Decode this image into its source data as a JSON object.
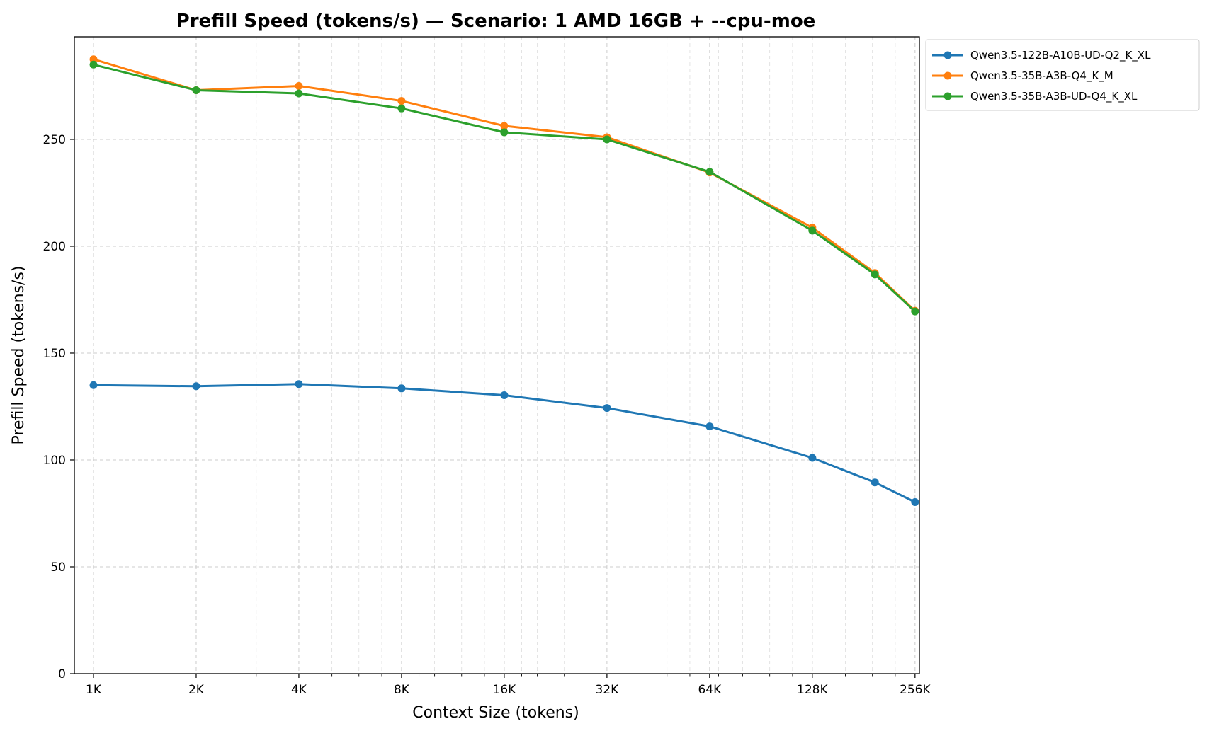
{
  "chart_data": {
    "type": "line",
    "title": "Prefill Speed (tokens/s) — Scenario: 1 AMD 16GB + --cpu-moe",
    "xlabel": "Context Size (tokens)",
    "ylabel": "Prefill Speed (tokens/s)",
    "x_scale": "log2",
    "x_ticks": [
      {
        "value": 1024,
        "label": "1K"
      },
      {
        "value": 2048,
        "label": "2K"
      },
      {
        "value": 4096,
        "label": "4K"
      },
      {
        "value": 8192,
        "label": "8K"
      },
      {
        "value": 16384,
        "label": "16K"
      },
      {
        "value": 32768,
        "label": "32K"
      },
      {
        "value": 65536,
        "label": "64K"
      },
      {
        "value": 131072,
        "label": "128K"
      },
      {
        "value": 262144,
        "label": "256K"
      }
    ],
    "x_minor_ticks": [
      3072,
      5120,
      6144,
      7168,
      9216,
      10240,
      12288,
      14336,
      18432,
      20480,
      24576,
      40960,
      49152,
      57344,
      69632,
      81920,
      98304,
      114688,
      163840,
      196608,
      229376
    ],
    "y_ticks": [
      0,
      50,
      100,
      150,
      200,
      250
    ],
    "xlim": [
      900,
      270000
    ],
    "ylim": [
      0,
      298
    ],
    "grid": true,
    "legend_position": "outside-top-right",
    "x": [
      1024,
      2048,
      4096,
      8192,
      16384,
      32768,
      65536,
      131072,
      200000,
      262144
    ],
    "series": [
      {
        "name": "Qwen3.5-122B-A10B-UD-Q2_K_XL",
        "color": "#1f77b4",
        "values": [
          135,
          134.5,
          135.5,
          133.5,
          130.3,
          124.3,
          115.7,
          101,
          89.5,
          80.3
        ]
      },
      {
        "name": "Qwen3.5-35B-A3B-Q4_K_M",
        "color": "#ff7f0e",
        "values": [
          287.5,
          273,
          275,
          268,
          256.3,
          251,
          234.5,
          208.7,
          187.5,
          169.8
        ]
      },
      {
        "name": "Qwen3.5-35B-A3B-UD-Q4_K_XL",
        "color": "#2ca02c",
        "values": [
          285,
          273,
          271.5,
          264.5,
          253.3,
          250,
          234.8,
          207.3,
          186.8,
          169.5
        ]
      }
    ]
  }
}
